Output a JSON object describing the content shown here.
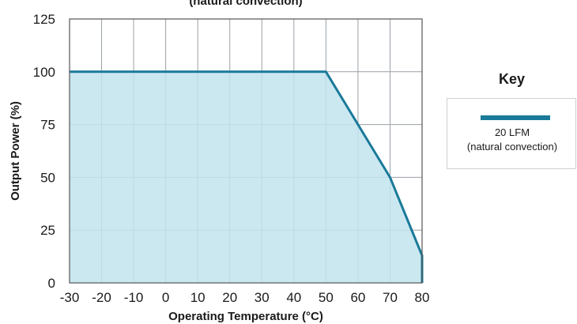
{
  "chart_data": {
    "type": "area",
    "title": "(natural convection)",
    "xlabel": "Operating Temperature (°C)",
    "ylabel": "Output Power (%)",
    "xlim": [
      -30,
      80
    ],
    "ylim": [
      0,
      125
    ],
    "xticks": [
      -30,
      -20,
      -10,
      0,
      10,
      20,
      30,
      40,
      50,
      60,
      70,
      80
    ],
    "yticks": [
      0,
      25,
      50,
      75,
      100,
      125
    ],
    "grid": true,
    "legend_title": "Key",
    "legend_position": "right",
    "series": [
      {
        "name": "20 LFM",
        "name_sub": "(natural convection)",
        "color": "#1a7a99",
        "fill_color": "#c2e4ef",
        "x": [
          -30,
          50,
          70,
          80,
          80
        ],
        "y": [
          100,
          100,
          50,
          13,
          0
        ]
      }
    ]
  }
}
